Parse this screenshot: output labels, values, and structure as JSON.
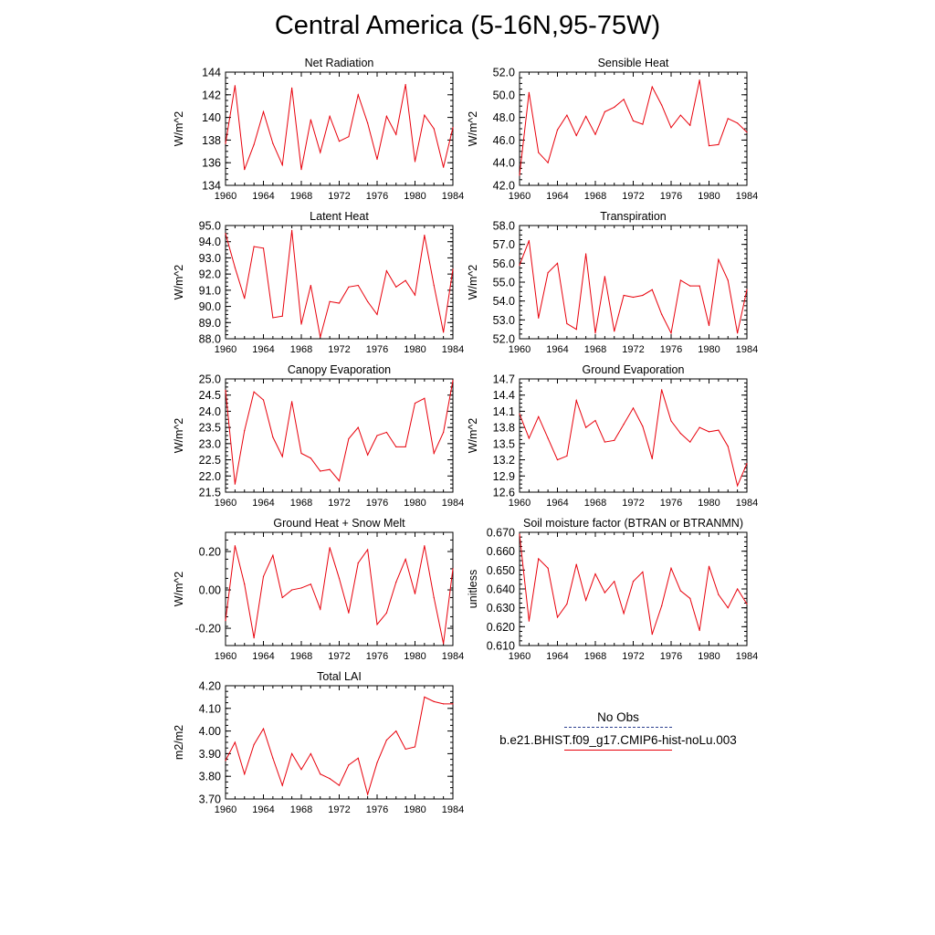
{
  "figure": {
    "title": "Central America (5-16N,95-75W)"
  },
  "legend": {
    "items": [
      {
        "label": "No Obs",
        "color": "#2a3f8f",
        "style": "dashed"
      },
      {
        "label": "b.e21.BHIST.f09_g17.CMIP6-hist-noLu.003",
        "color": "#e8000b",
        "style": "solid"
      }
    ]
  },
  "colors": {
    "series": "#e8000b",
    "axis": "#000000"
  },
  "chart_data": [
    {
      "type": "line",
      "title": "Net Radiation",
      "ylabel": "W/m^2",
      "xlabel": "",
      "xlim": [
        1960,
        1984
      ],
      "ylim": [
        134,
        144
      ],
      "yticks": [
        "134",
        "136",
        "138",
        "140",
        "142",
        "144"
      ],
      "ytick_values": [
        134,
        136,
        138,
        140,
        142,
        144
      ],
      "xticks": [
        "1960",
        "1964",
        "1968",
        "1972",
        "1976",
        "1980",
        "1984"
      ],
      "xtick_values": [
        1960,
        1964,
        1968,
        1972,
        1976,
        1980,
        1984
      ],
      "x": [
        1960,
        1961,
        1962,
        1963,
        1964,
        1965,
        1966,
        1967,
        1968,
        1969,
        1970,
        1971,
        1972,
        1973,
        1974,
        1975,
        1976,
        1977,
        1978,
        1979,
        1980,
        1981,
        1982,
        1983,
        1984
      ],
      "series": [
        {
          "values": [
            137.7,
            142.8,
            135.4,
            137.6,
            140.5,
            137.7,
            135.8,
            142.6,
            135.4,
            139.8,
            136.9,
            140.1,
            137.9,
            138.3,
            142.0,
            139.5,
            136.3,
            140.1,
            138.5,
            142.9,
            136.1,
            140.2,
            139.0,
            135.6,
            139.1
          ]
        }
      ]
    },
    {
      "type": "line",
      "title": "Sensible Heat",
      "ylabel": "W/m^2",
      "xlabel": "",
      "xlim": [
        1960,
        1984
      ],
      "ylim": [
        42,
        52
      ],
      "yticks": [
        "42.0",
        "44.0",
        "46.0",
        "48.0",
        "50.0",
        "52.0"
      ],
      "ytick_values": [
        42,
        44,
        46,
        48,
        50,
        52
      ],
      "xticks": [
        "1960",
        "1964",
        "1968",
        "1972",
        "1976",
        "1980",
        "1984"
      ],
      "xtick_values": [
        1960,
        1964,
        1968,
        1972,
        1976,
        1980,
        1984
      ],
      "x": [
        1960,
        1961,
        1962,
        1963,
        1964,
        1965,
        1966,
        1967,
        1968,
        1969,
        1970,
        1971,
        1972,
        1973,
        1974,
        1975,
        1976,
        1977,
        1978,
        1979,
        1980,
        1981,
        1982,
        1983,
        1984
      ],
      "series": [
        {
          "values": [
            42.9,
            50.2,
            44.9,
            44.0,
            46.9,
            48.2,
            46.4,
            48.1,
            46.5,
            48.5,
            48.9,
            49.6,
            47.7,
            47.4,
            50.7,
            49.1,
            47.1,
            48.2,
            47.3,
            51.3,
            45.5,
            45.6,
            47.9,
            47.5,
            46.7
          ]
        }
      ]
    },
    {
      "type": "line",
      "title": "Latent Heat",
      "ylabel": "W/m^2",
      "xlabel": "",
      "xlim": [
        1960,
        1984
      ],
      "ylim": [
        88,
        95
      ],
      "yticks": [
        "88.0",
        "89.0",
        "90.0",
        "91.0",
        "92.0",
        "93.0",
        "94.0",
        "95.0"
      ],
      "ytick_values": [
        88,
        89,
        90,
        91,
        92,
        93,
        94,
        95
      ],
      "xticks": [
        "1960",
        "1964",
        "1968",
        "1972",
        "1976",
        "1980",
        "1984"
      ],
      "xtick_values": [
        1960,
        1964,
        1968,
        1972,
        1976,
        1980,
        1984
      ],
      "x": [
        1960,
        1961,
        1962,
        1963,
        1964,
        1965,
        1966,
        1967,
        1968,
        1969,
        1970,
        1971,
        1972,
        1973,
        1974,
        1975,
        1976,
        1977,
        1978,
        1979,
        1980,
        1981,
        1982,
        1983,
        1984
      ],
      "series": [
        {
          "values": [
            94.5,
            92.4,
            90.5,
            93.7,
            93.6,
            89.3,
            89.4,
            94.7,
            88.9,
            91.3,
            88.1,
            90.3,
            90.2,
            91.2,
            91.3,
            90.3,
            89.5,
            92.2,
            91.2,
            91.6,
            90.7,
            94.4,
            91.3,
            88.4,
            92.3
          ]
        }
      ]
    },
    {
      "type": "line",
      "title": "Transpiration",
      "ylabel": "W/m^2",
      "xlabel": "",
      "xlim": [
        1960,
        1984
      ],
      "ylim": [
        52,
        58
      ],
      "yticks": [
        "52.0",
        "53.0",
        "54.0",
        "55.0",
        "56.0",
        "57.0",
        "58.0"
      ],
      "ytick_values": [
        52,
        53,
        54,
        55,
        56,
        57,
        58
      ],
      "xticks": [
        "1960",
        "1964",
        "1968",
        "1972",
        "1976",
        "1980",
        "1984"
      ],
      "xtick_values": [
        1960,
        1964,
        1968,
        1972,
        1976,
        1980,
        1984
      ],
      "x": [
        1960,
        1961,
        1962,
        1963,
        1964,
        1965,
        1966,
        1967,
        1968,
        1969,
        1970,
        1971,
        1972,
        1973,
        1974,
        1975,
        1976,
        1977,
        1978,
        1979,
        1980,
        1981,
        1982,
        1983,
        1984
      ],
      "series": [
        {
          "values": [
            55.9,
            57.2,
            53.1,
            55.5,
            56.0,
            52.8,
            52.5,
            56.5,
            52.3,
            55.3,
            52.4,
            54.3,
            54.2,
            54.3,
            54.6,
            53.3,
            52.3,
            55.1,
            54.8,
            54.8,
            52.7,
            56.2,
            55.1,
            52.3,
            54.6
          ]
        }
      ]
    },
    {
      "type": "line",
      "title": "Canopy Evaporation",
      "ylabel": "W/m^2",
      "xlabel": "",
      "xlim": [
        1960,
        1984
      ],
      "ylim": [
        21.5,
        25.0
      ],
      "yticks": [
        "21.5",
        "22.0",
        "22.5",
        "23.0",
        "23.5",
        "24.0",
        "24.5",
        "25.0"
      ],
      "ytick_values": [
        21.5,
        22.0,
        22.5,
        23.0,
        23.5,
        24.0,
        24.5,
        25.0
      ],
      "xticks": [
        "1960",
        "1964",
        "1968",
        "1972",
        "1976",
        "1980",
        "1984"
      ],
      "xtick_values": [
        1960,
        1964,
        1968,
        1972,
        1976,
        1980,
        1984
      ],
      "x": [
        1960,
        1961,
        1962,
        1963,
        1964,
        1965,
        1966,
        1967,
        1968,
        1969,
        1970,
        1971,
        1972,
        1973,
        1974,
        1975,
        1976,
        1977,
        1978,
        1979,
        1980,
        1981,
        1982,
        1983,
        1984
      ],
      "series": [
        {
          "values": [
            24.65,
            21.75,
            23.4,
            24.6,
            24.35,
            23.2,
            22.6,
            24.3,
            22.7,
            22.55,
            22.15,
            22.2,
            21.85,
            23.15,
            23.5,
            22.65,
            23.25,
            23.35,
            22.9,
            22.9,
            24.25,
            24.4,
            22.7,
            23.35,
            24.95
          ]
        }
      ]
    },
    {
      "type": "line",
      "title": "Ground Evaporation",
      "ylabel": "W/m^2",
      "xlabel": "",
      "xlim": [
        1960,
        1984
      ],
      "ylim": [
        12.6,
        14.7
      ],
      "yticks": [
        "12.6",
        "12.9",
        "13.2",
        "13.5",
        "13.8",
        "14.1",
        "14.4",
        "14.7"
      ],
      "ytick_values": [
        12.6,
        12.9,
        13.2,
        13.5,
        13.8,
        14.1,
        14.4,
        14.7
      ],
      "xticks": [
        "1960",
        "1964",
        "1968",
        "1972",
        "1976",
        "1980",
        "1984"
      ],
      "xtick_values": [
        1960,
        1964,
        1968,
        1972,
        1976,
        1980,
        1984
      ],
      "x": [
        1960,
        1961,
        1962,
        1963,
        1964,
        1965,
        1966,
        1967,
        1968,
        1969,
        1970,
        1971,
        1972,
        1973,
        1974,
        1975,
        1976,
        1977,
        1978,
        1979,
        1980,
        1981,
        1982,
        1983,
        1984
      ],
      "series": [
        {
          "values": [
            14.05,
            13.6,
            14.0,
            13.6,
            13.2,
            13.27,
            14.3,
            13.8,
            13.93,
            13.53,
            13.56,
            13.86,
            14.16,
            13.82,
            13.22,
            14.5,
            13.92,
            13.69,
            13.53,
            13.8,
            13.72,
            13.75,
            13.45,
            12.72,
            13.13
          ]
        }
      ]
    },
    {
      "type": "line",
      "title": "Ground Heat + Snow Melt",
      "ylabel": "W/m^2",
      "xlabel": "",
      "xlim": [
        1960,
        1984
      ],
      "ylim": [
        -0.29,
        0.3
      ],
      "yticks": [
        "-0.20",
        "0.00",
        "0.20"
      ],
      "ytick_values": [
        -0.2,
        0.0,
        0.2
      ],
      "xticks": [
        "1960",
        "1964",
        "1968",
        "1972",
        "1976",
        "1980",
        "1984"
      ],
      "xtick_values": [
        1960,
        1964,
        1968,
        1972,
        1976,
        1980,
        1984
      ],
      "x": [
        1960,
        1961,
        1962,
        1963,
        1964,
        1965,
        1966,
        1967,
        1968,
        1969,
        1970,
        1971,
        1972,
        1973,
        1974,
        1975,
        1976,
        1977,
        1978,
        1979,
        1980,
        1981,
        1982,
        1983,
        1984
      ],
      "series": [
        {
          "values": [
            -0.16,
            0.23,
            0.03,
            -0.25,
            0.07,
            0.18,
            -0.04,
            0.0,
            0.01,
            0.03,
            -0.1,
            0.22,
            0.06,
            -0.12,
            0.14,
            0.21,
            -0.18,
            -0.12,
            0.04,
            0.16,
            -0.02,
            0.23,
            -0.04,
            -0.28,
            0.11
          ]
        }
      ]
    },
    {
      "type": "line",
      "title": "Soil moisture factor (BTRAN or BTRANMN)",
      "ylabel": "unitless",
      "xlabel": "",
      "xlim": [
        1960,
        1984
      ],
      "ylim": [
        0.61,
        0.67
      ],
      "yticks": [
        "0.610",
        "0.620",
        "0.630",
        "0.640",
        "0.650",
        "0.660",
        "0.670"
      ],
      "ytick_values": [
        0.61,
        0.62,
        0.63,
        0.64,
        0.65,
        0.66,
        0.67
      ],
      "xticks": [
        "1960",
        "1964",
        "1968",
        "1972",
        "1976",
        "1980",
        "1984"
      ],
      "xtick_values": [
        1960,
        1964,
        1968,
        1972,
        1976,
        1980,
        1984
      ],
      "x": [
        1960,
        1961,
        1962,
        1963,
        1964,
        1965,
        1966,
        1967,
        1968,
        1969,
        1970,
        1971,
        1972,
        1973,
        1974,
        1975,
        1976,
        1977,
        1978,
        1979,
        1980,
        1981,
        1982,
        1983,
        1984
      ],
      "series": [
        {
          "values": [
            0.669,
            0.623,
            0.656,
            0.651,
            0.625,
            0.632,
            0.653,
            0.634,
            0.648,
            0.638,
            0.644,
            0.627,
            0.644,
            0.649,
            0.616,
            0.631,
            0.651,
            0.639,
            0.635,
            0.618,
            0.652,
            0.637,
            0.63,
            0.64,
            0.632
          ]
        }
      ]
    },
    {
      "type": "line",
      "title": "Total LAI",
      "ylabel": "m2/m2",
      "xlabel": "",
      "xlim": [
        1960,
        1984
      ],
      "ylim": [
        3.7,
        4.2
      ],
      "yticks": [
        "3.70",
        "3.80",
        "3.90",
        "4.00",
        "4.10",
        "4.20"
      ],
      "ytick_values": [
        3.7,
        3.8,
        3.9,
        4.0,
        4.1,
        4.2
      ],
      "xticks": [
        "1960",
        "1964",
        "1968",
        "1972",
        "1976",
        "1980",
        "1984"
      ],
      "xtick_values": [
        1960,
        1964,
        1968,
        1972,
        1976,
        1980,
        1984
      ],
      "x": [
        1960,
        1961,
        1962,
        1963,
        1964,
        1965,
        1966,
        1967,
        1968,
        1969,
        1970,
        1971,
        1972,
        1973,
        1974,
        1975,
        1976,
        1977,
        1978,
        1979,
        1980,
        1981,
        1982,
        1983,
        1984
      ],
      "series": [
        {
          "values": [
            3.87,
            3.95,
            3.81,
            3.94,
            4.01,
            3.88,
            3.76,
            3.9,
            3.83,
            3.9,
            3.81,
            3.79,
            3.76,
            3.85,
            3.88,
            3.72,
            3.86,
            3.96,
            4.0,
            3.92,
            3.93,
            4.15,
            4.13,
            4.12,
            4.12
          ]
        }
      ]
    }
  ]
}
